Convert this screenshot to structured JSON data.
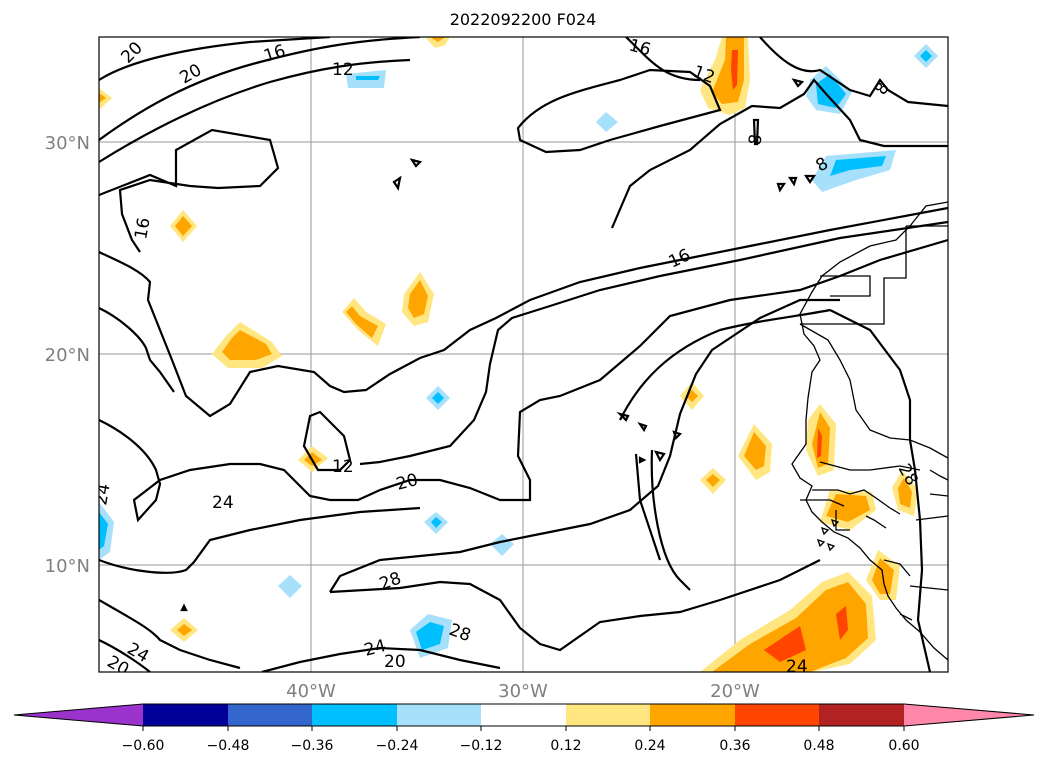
{
  "title": "2022092200 F024",
  "map": {
    "lat_labels": [
      "30°N",
      "20°N",
      "10°N"
    ],
    "lon_labels": [
      "40°W",
      "30°W",
      "20°W"
    ],
    "contour_labels": [
      "20",
      "20",
      "16",
      "12",
      "16",
      "12",
      "8",
      "8",
      "16",
      "16",
      "24",
      "12",
      "20",
      "28",
      "28",
      "24",
      "24",
      "20",
      "20",
      "24",
      "24",
      "28"
    ],
    "contour_color": "#000000",
    "grid_color": "#999999"
  },
  "colorbar": {
    "ticks": [
      "−0.60",
      "−0.48",
      "−0.36",
      "−0.24",
      "−0.12",
      "0.12",
      "0.24",
      "0.36",
      "0.48",
      "0.60"
    ],
    "colors": [
      "#9933cc",
      "#000099",
      "#3366cc",
      "#00bfff",
      "#a6e0fa",
      "#ffffff",
      "#ffe680",
      "#ffa500",
      "#ff4500",
      "#b22222",
      "#ff88aa"
    ]
  }
}
